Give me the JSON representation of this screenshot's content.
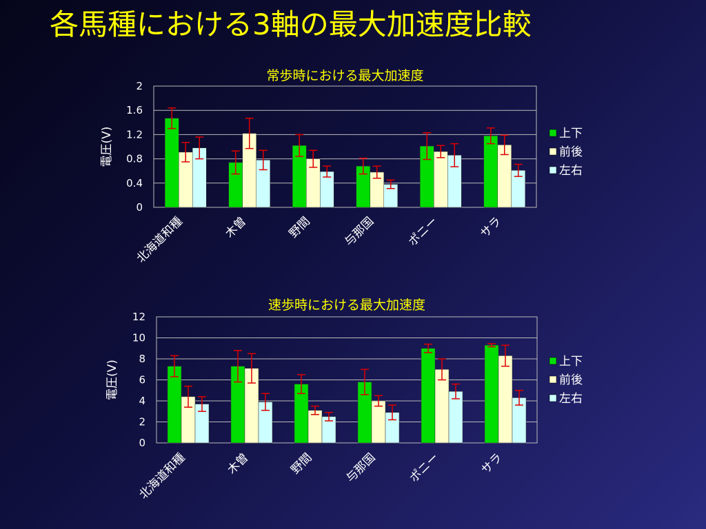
{
  "slide": {
    "title": "各馬種における3軸の最大加速度比較"
  },
  "colors": {
    "up_down": "#00dd00",
    "front_back": "#ffffcc",
    "left_right": "#ccffff",
    "error_bar": "#dd0000",
    "title": "#ffff00"
  },
  "chart_data": [
    {
      "type": "bar",
      "title": "常歩時における最大加速度",
      "ylabel": "電圧(V)",
      "ylim": [
        0,
        2
      ],
      "yticks": [
        "0",
        "0.4",
        "0.8",
        "1.2",
        "1.6",
        "2"
      ],
      "grid": true,
      "legend_position": "right",
      "categories": [
        "北海道和種",
        "木曽",
        "野間",
        "与那国",
        "ポニー",
        "サラ"
      ],
      "series": [
        {
          "name": "上下",
          "color": "#00dd00",
          "values": [
            1.47,
            0.74,
            1.02,
            0.68,
            1.01,
            1.18
          ],
          "errors": [
            0.17,
            0.19,
            0.18,
            0.13,
            0.22,
            0.13
          ]
        },
        {
          "name": "前後",
          "color": "#ffffcc",
          "values": [
            0.91,
            1.22,
            0.8,
            0.58,
            0.92,
            1.03
          ],
          "errors": [
            0.16,
            0.25,
            0.14,
            0.1,
            0.1,
            0.16
          ]
        },
        {
          "name": "左右",
          "color": "#ccffff",
          "values": [
            0.98,
            0.78,
            0.59,
            0.38,
            0.86,
            0.61
          ],
          "errors": [
            0.18,
            0.16,
            0.09,
            0.07,
            0.19,
            0.1
          ]
        }
      ]
    },
    {
      "type": "bar",
      "title": "速歩時における最大加速度",
      "ylabel": "電圧(V)",
      "ylim": [
        0,
        12
      ],
      "yticks": [
        "0",
        "2",
        "4",
        "6",
        "8",
        "10",
        "12"
      ],
      "grid": true,
      "legend_position": "right",
      "categories": [
        "北海道和種",
        "木曽",
        "野間",
        "与那国",
        "ポニー",
        "サラ"
      ],
      "series": [
        {
          "name": "上下",
          "color": "#00dd00",
          "values": [
            7.3,
            7.3,
            5.6,
            5.8,
            9.0,
            9.3
          ],
          "errors": [
            1.0,
            1.5,
            0.9,
            1.2,
            0.4,
            0.15
          ]
        },
        {
          "name": "前後",
          "color": "#ffffcc",
          "values": [
            4.4,
            7.1,
            3.1,
            4.0,
            7.0,
            8.3
          ],
          "errors": [
            1.0,
            1.4,
            0.4,
            0.5,
            1.0,
            1.0
          ]
        },
        {
          "name": "左右",
          "color": "#ccffff",
          "values": [
            3.7,
            3.9,
            2.5,
            2.9,
            4.9,
            4.3
          ],
          "errors": [
            0.7,
            0.8,
            0.4,
            0.7,
            0.7,
            0.7
          ]
        }
      ]
    }
  ]
}
